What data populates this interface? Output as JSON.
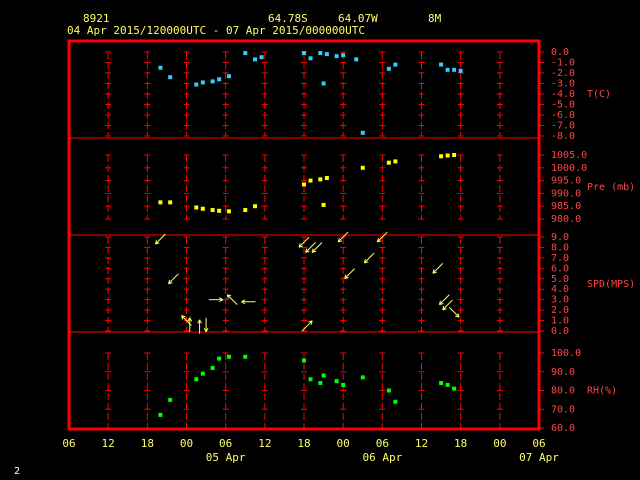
{
  "header": {
    "station": "8921",
    "lat": "64.78S",
    "lon": "64.07W",
    "elev": "8M",
    "range": "04 Apr 2015/120000UTC - 07 Apr 2015/000000UTC"
  },
  "footer": {
    "page": "2"
  },
  "colors": {
    "frame": "#ff0000",
    "temp": "#33ccff",
    "pres": "#ffff00",
    "wind": "#ffff66",
    "rh": "#00ff00",
    "text": "#ffff66"
  },
  "chart_data": {
    "type": "scatter",
    "x_ticks": [
      "06",
      "12",
      "18",
      "00",
      "06",
      "12",
      "18",
      "00",
      "06",
      "12",
      "18",
      "00",
      "06"
    ],
    "x_dates": [
      {
        "label": "05 Apr",
        "at_hour": 24
      },
      {
        "label": "06 Apr",
        "at_hour": 48
      },
      {
        "label": "07 Apr",
        "at_hour": 72
      }
    ],
    "x_unit": "hours from 04 Apr 06 UTC",
    "xlim": [
      0,
      72
    ],
    "panels": [
      {
        "name": "temp",
        "ylabel": "T(C)",
        "ylim": [
          -8.0,
          0.0
        ],
        "ticks": [
          "0.0",
          "-1.0",
          "-2.0",
          "-3.0",
          "-4.0",
          "-5.0",
          "-6.0",
          "-7.0",
          "-8.0"
        ],
        "points": [
          [
            14,
            -1.5
          ],
          [
            15.5,
            -2.4
          ],
          [
            19.5,
            -3.1
          ],
          [
            20.5,
            -2.9
          ],
          [
            22,
            -2.8
          ],
          [
            23,
            -2.6
          ],
          [
            24.5,
            -2.3
          ],
          [
            27,
            -0.1
          ],
          [
            28.5,
            -0.7
          ],
          [
            29.5,
            -0.5
          ],
          [
            36,
            -0.1
          ],
          [
            37,
            -0.6
          ],
          [
            38.5,
            -0.1
          ],
          [
            39,
            -3.0
          ],
          [
            39.5,
            -0.2
          ],
          [
            41,
            -0.4
          ],
          [
            42,
            -0.3
          ],
          [
            44,
            -0.7
          ],
          [
            45,
            -7.7
          ],
          [
            49,
            -1.6
          ],
          [
            50,
            -1.2
          ],
          [
            57,
            -1.2
          ],
          [
            58,
            -1.7
          ],
          [
            59,
            -1.7
          ],
          [
            60,
            -1.8
          ]
        ]
      },
      {
        "name": "pres",
        "ylabel": "Pre (mb)",
        "ylim": [
          980.0,
          1005.0
        ],
        "ticks": [
          "1005.0",
          "1000.0",
          "995.0",
          "990.0",
          "985.0",
          "980.0"
        ],
        "points": [
          [
            14,
            986.5
          ],
          [
            15.5,
            986.5
          ],
          [
            19.5,
            984.5
          ],
          [
            20.5,
            984.0
          ],
          [
            22,
            983.5
          ],
          [
            23,
            983.2
          ],
          [
            24.5,
            983.0
          ],
          [
            27,
            983.5
          ],
          [
            28.5,
            985.0
          ],
          [
            36,
            993.5
          ],
          [
            37,
            995.0
          ],
          [
            38.5,
            995.5
          ],
          [
            39,
            985.5
          ],
          [
            39.5,
            996.0
          ],
          [
            45,
            1000.0
          ],
          [
            49,
            1002.0
          ],
          [
            50,
            1002.5
          ],
          [
            57,
            1004.5
          ],
          [
            58,
            1004.8
          ],
          [
            59,
            1005.0
          ]
        ]
      },
      {
        "name": "wind",
        "ylabel": "SPD(MPS)",
        "ylim": [
          0.0,
          9.0
        ],
        "ticks": [
          "9.0",
          "8.0",
          "7.0",
          "6.0",
          "5.0",
          "4.0",
          "3.0",
          "2.0",
          "1.0",
          "0.0"
        ],
        "barbs": [
          {
            "x": 14,
            "spd": 8.8,
            "dir": 225
          },
          {
            "x": 16,
            "spd": 5.0,
            "dir": 225
          },
          {
            "x": 18,
            "spd": 1.0,
            "dir": 315
          },
          {
            "x": 18.5,
            "spd": 0.6,
            "dir": 0
          },
          {
            "x": 20,
            "spd": 0.4,
            "dir": 0
          },
          {
            "x": 21,
            "spd": 0.6,
            "dir": 180
          },
          {
            "x": 22.5,
            "spd": 3.0,
            "dir": 90
          },
          {
            "x": 25,
            "spd": 3.0,
            "dir": 315
          },
          {
            "x": 27.5,
            "spd": 2.8,
            "dir": 270
          },
          {
            "x": 36,
            "spd": 8.5,
            "dir": 225
          },
          {
            "x": 37,
            "spd": 8.0,
            "dir": 225
          },
          {
            "x": 38,
            "spd": 8.0,
            "dir": 225
          },
          {
            "x": 36.5,
            "spd": 0.5,
            "dir": 45
          },
          {
            "x": 42,
            "spd": 9.0,
            "dir": 225
          },
          {
            "x": 43,
            "spd": 5.5,
            "dir": 225
          },
          {
            "x": 46,
            "spd": 7.0,
            "dir": 225
          },
          {
            "x": 48,
            "spd": 9.0,
            "dir": 225
          },
          {
            "x": 56.5,
            "spd": 6.0,
            "dir": 225
          },
          {
            "x": 57.5,
            "spd": 3.0,
            "dir": 225
          },
          {
            "x": 58,
            "spd": 2.5,
            "dir": 225
          },
          {
            "x": 59,
            "spd": 1.8,
            "dir": 135
          }
        ]
      },
      {
        "name": "rh",
        "ylabel": "RH(%)",
        "ylim": [
          60.0,
          100.0
        ],
        "ticks": [
          "100.0",
          "90.0",
          "80.0",
          "70.0",
          "60.0"
        ],
        "points": [
          [
            14,
            67
          ],
          [
            15.5,
            75
          ],
          [
            19.5,
            86
          ],
          [
            20.5,
            89
          ],
          [
            22,
            92
          ],
          [
            23,
            97
          ],
          [
            24.5,
            98
          ],
          [
            27,
            98
          ],
          [
            36,
            96
          ],
          [
            37,
            86
          ],
          [
            38.5,
            84
          ],
          [
            39,
            88
          ],
          [
            41,
            85
          ],
          [
            42,
            83
          ],
          [
            45,
            87
          ],
          [
            49,
            80
          ],
          [
            50,
            74
          ],
          [
            57,
            84
          ],
          [
            58,
            83
          ],
          [
            59,
            81
          ]
        ]
      }
    ]
  }
}
